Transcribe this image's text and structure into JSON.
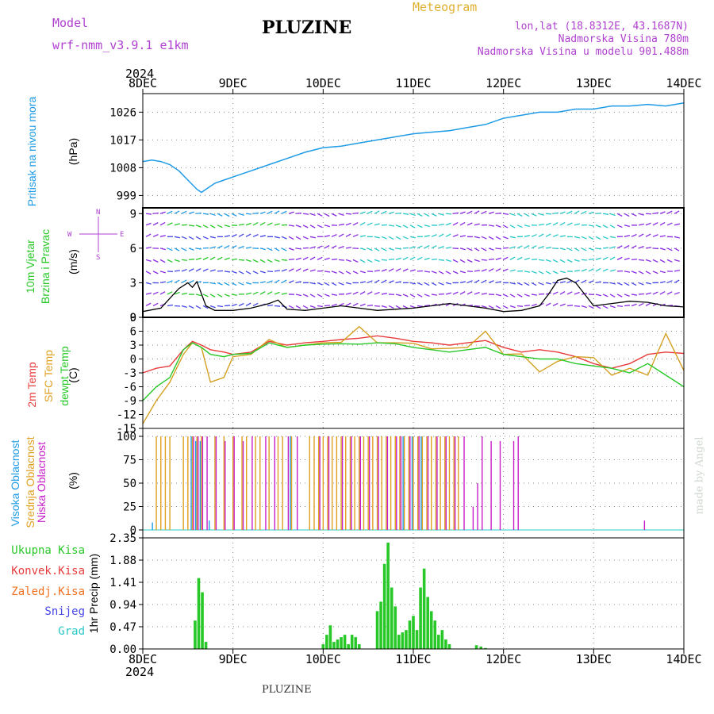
{
  "header": {
    "model_label": "Model",
    "model_name": "wrf-nmm_v3.9.1  e1km",
    "title": "PLUZINE",
    "meteogram_label": "Meteogram",
    "coords": "lon,lat (18.8312E, 43.1687N)",
    "altitude": "Nadmorska Visina 780m",
    "model_altitude": "Nadmorska Visina u modelu 901.488m"
  },
  "footer": {
    "station": "PLUZINE",
    "credit": "made by Angel"
  },
  "axis": {
    "year": "2024",
    "dates": [
      "8DEC",
      "9DEC",
      "10DEC",
      "11DEC",
      "12DEC",
      "13DEC",
      "14DEC"
    ]
  },
  "labels": {
    "pressure": [
      "Pritisak na nivou mora",
      "(hPa)"
    ],
    "wind": [
      "10m Vjetar",
      "Brzina i Pravac",
      "(m/s)"
    ],
    "wind_rose": [
      "N",
      "W",
      "E",
      "S"
    ],
    "temp": [
      "2m Temp",
      "SFC Temp",
      "dewpt Temp",
      "(C)"
    ],
    "cloud": [
      "Visoka Oblacnost",
      "Srednja Oblacnost",
      "Niska Oblacnost",
      "(%)"
    ],
    "precip_legend": [
      "Ukupna Kisa",
      "Konvek.Kisa",
      "Zaledj.Kisa",
      "Snijeg",
      "Grad"
    ],
    "precip_unit": "1hr Precip (mm)"
  },
  "colors": {
    "pressure": "#1e9be6",
    "wind_speed": "#000000",
    "temp2m": "#e83c3c",
    "sfc_temp": "#d4a020",
    "dewpoint": "#28c828",
    "high_cloud": "#1e9be6",
    "mid_cloud": "#e0a020",
    "low_cloud": "#c81ec8",
    "precip": "#28c828",
    "conv": "#e83c3c",
    "frz": "#f07020",
    "snow": "#4646e6",
    "hail": "#28c8c8",
    "model_label": "#b040d0",
    "meteogram_label": "#e0b030"
  },
  "chart_data": [
    {
      "type": "line",
      "name": "pressure",
      "ylim": [
        995,
        1032
      ],
      "yticks": [
        999,
        1008,
        1017,
        1026
      ],
      "x_days": [
        0,
        0.1,
        0.2,
        0.3,
        0.4,
        0.5,
        0.6,
        0.65,
        0.7,
        0.8,
        0.9,
        1.0,
        1.2,
        1.4,
        1.6,
        1.8,
        2.0,
        2.2,
        2.4,
        2.6,
        2.8,
        3.0,
        3.2,
        3.4,
        3.6,
        3.8,
        4.0,
        4.2,
        4.4,
        4.6,
        4.8,
        5.0,
        5.2,
        5.4,
        5.6,
        5.8,
        6.0
      ],
      "values": [
        1010,
        1010.5,
        1010,
        1009,
        1007,
        1004,
        1001,
        1000,
        1001,
        1003,
        1004,
        1005,
        1007,
        1009,
        1011,
        1013,
        1014.5,
        1015,
        1016,
        1017,
        1018,
        1019,
        1019.5,
        1020,
        1021,
        1022,
        1024,
        1025,
        1026,
        1026,
        1027,
        1027,
        1028,
        1028,
        1028.5,
        1028,
        1029
      ]
    },
    {
      "type": "line",
      "name": "wind_speed",
      "ylim": [
        0,
        9.5
      ],
      "yticks": [
        0,
        3,
        6,
        9
      ],
      "x_days": [
        0,
        0.2,
        0.4,
        0.5,
        0.55,
        0.6,
        0.7,
        0.8,
        1.0,
        1.2,
        1.4,
        1.5,
        1.6,
        1.8,
        2.0,
        2.2,
        2.4,
        2.6,
        2.8,
        3.0,
        3.2,
        3.4,
        3.6,
        3.8,
        4.0,
        4.2,
        4.4,
        4.5,
        4.6,
        4.7,
        4.8,
        4.9,
        5.0,
        5.2,
        5.4,
        5.6,
        5.8,
        6.0
      ],
      "values": [
        0.5,
        0.8,
        2.5,
        3.0,
        2.6,
        3.1,
        1.0,
        0.6,
        0.6,
        0.8,
        1.2,
        1.5,
        0.7,
        0.6,
        0.8,
        1.0,
        0.8,
        0.6,
        0.7,
        0.8,
        1.0,
        1.2,
        1.0,
        0.8,
        0.5,
        0.6,
        1.0,
        2.0,
        3.2,
        3.4,
        3.0,
        2.0,
        1.0,
        1.2,
        1.4,
        1.3,
        1.0,
        0.9
      ]
    },
    {
      "type": "line",
      "name": "temperature",
      "ylim": [
        -15,
        9
      ],
      "yticks": [
        -15,
        -12,
        -9,
        -6,
        -3,
        0,
        3,
        6,
        9
      ],
      "x_days": [
        0,
        0.15,
        0.3,
        0.45,
        0.55,
        0.65,
        0.75,
        0.9,
        1.0,
        1.2,
        1.4,
        1.6,
        1.8,
        2.0,
        2.2,
        2.4,
        2.6,
        2.8,
        3.0,
        3.2,
        3.4,
        3.6,
        3.8,
        4.0,
        4.2,
        4.4,
        4.6,
        4.8,
        5.0,
        5.2,
        5.4,
        5.6,
        5.8,
        6.0
      ],
      "series": [
        {
          "name": "2m Temp",
          "values": [
            -3,
            -2,
            -1.5,
            2,
            3.8,
            3.0,
            2.0,
            1.5,
            1.0,
            1.5,
            3.8,
            3.0,
            3.5,
            3.8,
            4.2,
            4.5,
            5.0,
            4.5,
            3.8,
            3.5,
            3.0,
            3.5,
            4.0,
            2.5,
            1.5,
            2.0,
            1.5,
            0.5,
            -1,
            -2,
            -1,
            1,
            1.5,
            1.2
          ]
        },
        {
          "name": "SFC Temp",
          "values": [
            -14,
            -9,
            -5,
            1,
            3.5,
            2.5,
            -5,
            -4,
            0.5,
            1,
            4.2,
            2.5,
            3,
            3.5,
            3.6,
            7,
            3.5,
            3.5,
            3.4,
            2.2,
            2.3,
            2.5,
            6,
            1,
            1.1,
            -2.8,
            -0.5,
            0.5,
            0.3,
            -3.5,
            -2,
            -3.5,
            5.5,
            -2.5
          ]
        },
        {
          "name": "dewpt Temp",
          "values": [
            -9,
            -6,
            -4,
            2,
            3.5,
            2.5,
            1.0,
            0.5,
            1.0,
            1.2,
            3.5,
            2.5,
            3.0,
            3.2,
            3.3,
            3.2,
            3.5,
            3.3,
            2.5,
            2.0,
            1.5,
            2.0,
            2.5,
            1.0,
            0.5,
            0.0,
            0.0,
            -1.0,
            -1.5,
            -2.0,
            -3.0,
            -1.0,
            -3.5,
            -6.0
          ]
        }
      ]
    },
    {
      "type": "bar",
      "name": "cloud_cover",
      "ylim": [
        0,
        100
      ],
      "yticks": [
        0,
        25,
        50,
        75,
        100
      ],
      "series": [
        {
          "name": "Visoka Oblacnost",
          "x_days": [
            0.12,
            0.55,
            0.6,
            0.65,
            0.75,
            1.65,
            2.9,
            3.0,
            3.1
          ],
          "values": [
            8,
            100,
            95,
            95,
            10,
            100,
            100,
            100,
            100
          ]
        },
        {
          "name": "Srednja Oblacnost",
          "x_days": [
            0.15,
            0.2,
            0.25,
            0.3,
            0.45,
            0.5,
            0.55,
            0.6,
            0.65,
            0.8,
            0.9,
            1.0,
            1.1,
            1.15,
            1.25,
            1.3,
            1.4,
            1.5,
            1.55,
            1.65,
            1.85,
            1.9,
            1.95,
            2.0,
            2.05,
            2.1,
            2.15,
            2.2,
            2.25,
            2.3,
            2.35,
            2.4,
            2.45,
            2.5,
            2.55,
            2.6,
            2.65,
            2.7,
            2.75,
            2.8,
            2.85,
            2.9,
            2.95,
            3.0,
            3.05,
            3.1,
            3.15,
            3.2,
            3.25,
            3.3,
            3.35,
            3.4,
            3.45,
            3.5
          ],
          "values": [
            100,
            100,
            100,
            100,
            100,
            100,
            100,
            100,
            100,
            100,
            100,
            100,
            100,
            100,
            100,
            100,
            100,
            100,
            100,
            100,
            100,
            100,
            100,
            100,
            100,
            100,
            100,
            100,
            100,
            100,
            100,
            100,
            100,
            100,
            100,
            100,
            100,
            100,
            100,
            100,
            100,
            100,
            100,
            100,
            100,
            100,
            100,
            100,
            100,
            100,
            100,
            100,
            100,
            100
          ]
        },
        {
          "name": "Niska Oblacnost",
          "x_days": [
            0.55,
            0.6,
            0.65,
            0.7,
            0.8,
            0.9,
            1.0,
            1.1,
            1.2,
            1.35,
            1.45,
            1.6,
            1.7,
            1.95,
            2.05,
            2.2,
            2.3,
            2.4,
            2.5,
            2.6,
            2.7,
            2.8,
            2.85,
            2.95,
            3.05,
            3.15,
            3.25,
            3.35,
            3.45,
            3.55,
            3.65,
            3.7,
            3.75,
            3.85,
            3.95,
            4.1,
            4.15,
            5.55
          ],
          "values": [
            100,
            100,
            100,
            100,
            100,
            95,
            100,
            95,
            100,
            100,
            100,
            100,
            100,
            100,
            100,
            100,
            100,
            100,
            100,
            100,
            100,
            100,
            100,
            100,
            100,
            100,
            100,
            100,
            100,
            100,
            25,
            50,
            100,
            95,
            95,
            95,
            100,
            10
          ]
        }
      ]
    },
    {
      "type": "bar",
      "name": "precip",
      "ylim": [
        0,
        2.35
      ],
      "yticks": [
        0,
        0.47,
        0.94,
        1.41,
        1.88,
        2.35
      ],
      "x_days": [
        0.58,
        0.62,
        0.66,
        0.7,
        2.0,
        2.04,
        2.08,
        2.12,
        2.16,
        2.2,
        2.24,
        2.28,
        2.32,
        2.36,
        2.4,
        2.6,
        2.64,
        2.68,
        2.72,
        2.76,
        2.8,
        2.84,
        2.88,
        2.92,
        2.96,
        3.0,
        3.04,
        3.08,
        3.12,
        3.16,
        3.2,
        3.24,
        3.28,
        3.32,
        3.36,
        3.4,
        3.7,
        3.75,
        3.8
      ],
      "values": [
        0.6,
        1.5,
        1.2,
        0.15,
        0.1,
        0.3,
        0.5,
        0.15,
        0.2,
        0.25,
        0.3,
        0.1,
        0.3,
        0.25,
        0.1,
        0.8,
        1.0,
        1.8,
        2.25,
        1.3,
        0.9,
        0.3,
        0.35,
        0.4,
        0.6,
        0.7,
        0.4,
        1.3,
        1.7,
        1.1,
        0.8,
        0.6,
        0.3,
        0.4,
        0.2,
        0.1,
        0.08,
        0.05,
        0.02
      ]
    }
  ]
}
